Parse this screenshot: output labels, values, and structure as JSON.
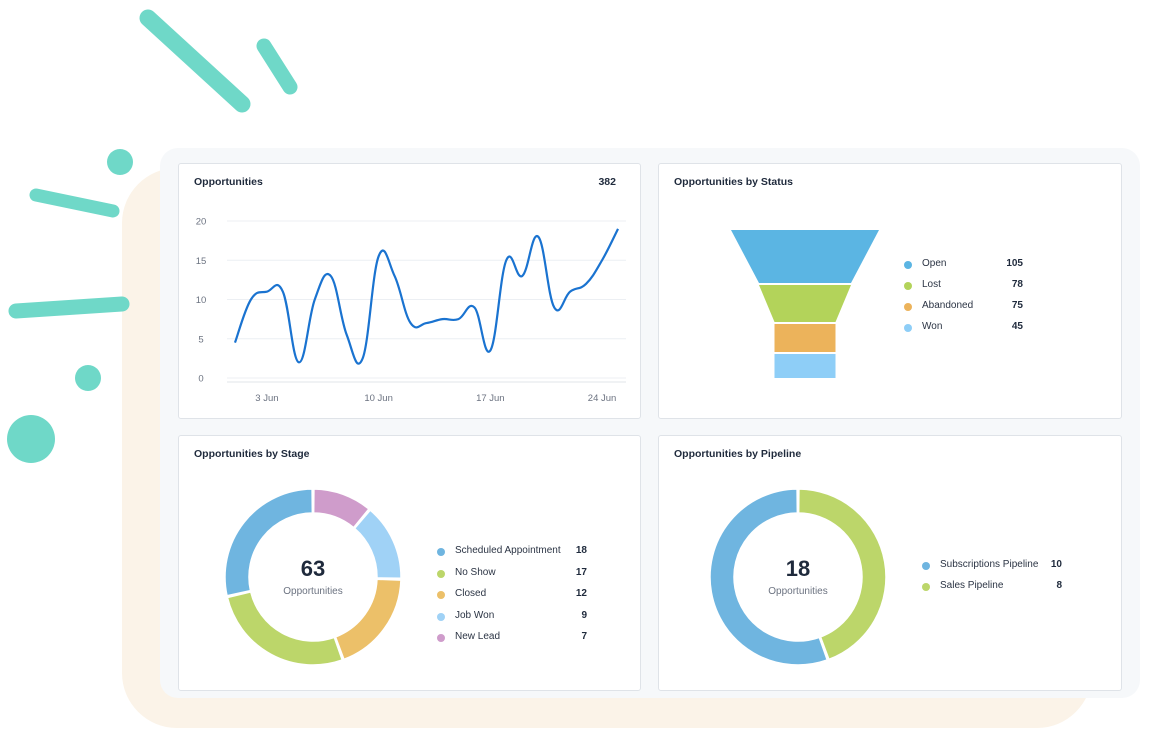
{
  "colors": {
    "teal_decor": "#6fd8c8",
    "cream_bg": "#fbf3e8",
    "panel_bg": "#f6f8fa",
    "line_blue": "#1a73d0",
    "blue": "#5bb0e0",
    "green": "#b3d35a",
    "orange": "#ecb35b",
    "light_blue": "#8ecef7",
    "purple": "#cf9ccb"
  },
  "opportunities": {
    "title": "Opportunities",
    "total": "382",
    "chart_data": {
      "type": "line",
      "y_ticks": [
        "0",
        "5",
        "10",
        "15",
        "20"
      ],
      "ylim": [
        0,
        20
      ],
      "x_tick_labels": [
        "3 Jun",
        "10 Jun",
        "17 Jun",
        "24 Jun"
      ],
      "x_tick_positions": [
        3,
        10,
        17,
        24
      ],
      "x": [
        1,
        2,
        3,
        4,
        5,
        6,
        7,
        8,
        9,
        10,
        11,
        12,
        13,
        14,
        15,
        16,
        17,
        18,
        19,
        20,
        21,
        22,
        23,
        24,
        25
      ],
      "y": [
        4.5,
        10,
        11,
        11,
        2,
        10,
        13,
        5.5,
        2.5,
        15.5,
        13,
        7,
        7,
        7.5,
        7.5,
        9,
        3.5,
        15,
        13,
        18,
        9,
        11,
        12,
        15,
        19
      ],
      "series_color": "#1a73d0"
    }
  },
  "status": {
    "title": "Opportunities by Status",
    "chart_data": {
      "type": "funnel",
      "categories": [
        "Open",
        "Lost",
        "Abandoned",
        "Won"
      ],
      "values": [
        105,
        78,
        75,
        45
      ],
      "colors": [
        "#5bb5e3",
        "#b3d35a",
        "#ecb35b",
        "#8ecef7"
      ]
    },
    "legend": [
      {
        "label": "Open",
        "value": "105",
        "color": "#5bb5e3"
      },
      {
        "label": "Lost",
        "value": "78",
        "color": "#b3d35a"
      },
      {
        "label": "Abandoned",
        "value": "75",
        "color": "#ecb35b"
      },
      {
        "label": "Won",
        "value": "45",
        "color": "#8ecef7"
      }
    ]
  },
  "stage": {
    "title": "Opportunities by Stage",
    "center_value": "63",
    "center_caption": "Opportunities",
    "chart_data": {
      "type": "pie",
      "categories": [
        "New Lead",
        "Job Won",
        "Closed",
        "No Show",
        "Scheduled Appointment"
      ],
      "values": [
        7,
        9,
        12,
        17,
        18
      ],
      "colors": [
        "#cf9ccb",
        "#a0d2f6",
        "#ecc069",
        "#bcd66a",
        "#6fb5e0"
      ]
    },
    "legend": [
      {
        "label": "Scheduled Appointment",
        "value": "18",
        "color": "#6fb5e0"
      },
      {
        "label": "No Show",
        "value": "17",
        "color": "#bcd66a"
      },
      {
        "label": "Closed",
        "value": "12",
        "color": "#ecc069"
      },
      {
        "label": "Job Won",
        "value": "9",
        "color": "#a0d2f6"
      },
      {
        "label": "New Lead",
        "value": "7",
        "color": "#cf9ccb"
      }
    ]
  },
  "pipeline": {
    "title": "Opportunities by Pipeline",
    "center_value": "18",
    "center_caption": "Opportunities",
    "chart_data": {
      "type": "pie",
      "categories": [
        "Sales Pipeline",
        "Subscriptions Pipeline"
      ],
      "values": [
        8,
        10
      ],
      "colors": [
        "#bcd66a",
        "#6fb5e0"
      ]
    },
    "legend": [
      {
        "label": "Subscriptions Pipeline",
        "value": "10",
        "color": "#6fb5e0"
      },
      {
        "label": "Sales Pipeline",
        "value": "8",
        "color": "#bcd66a"
      }
    ]
  }
}
